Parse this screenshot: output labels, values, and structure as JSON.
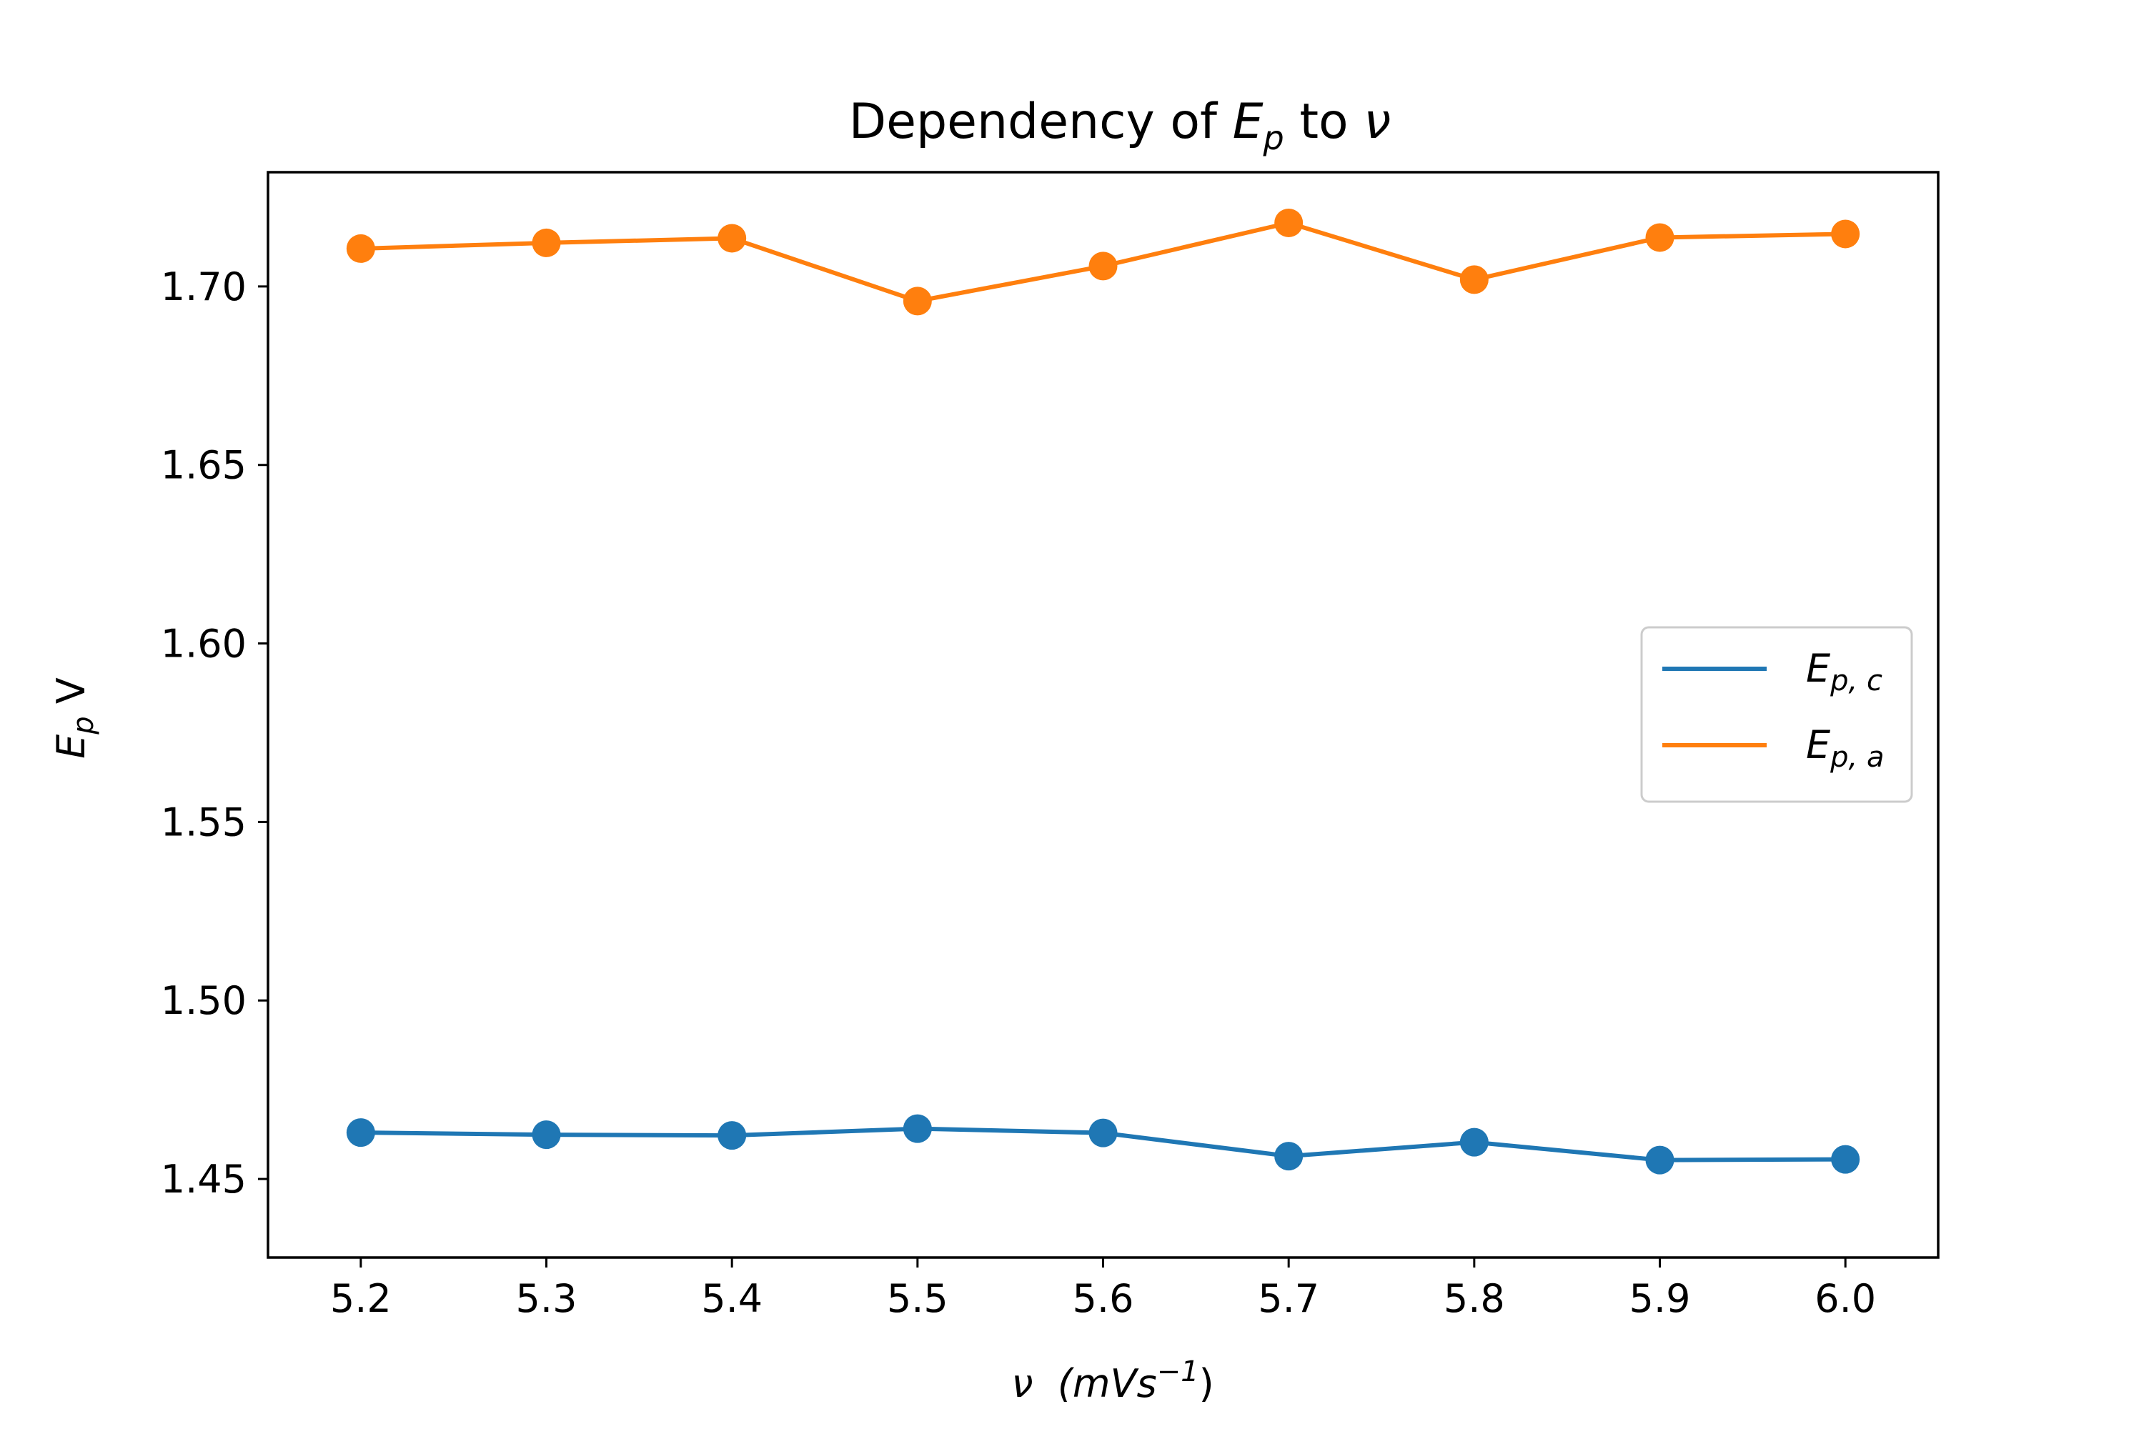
{
  "chart_data": {
    "type": "line",
    "title": "Dependency of E_p to ν",
    "title_parts": {
      "prefix": "Dependency of ",
      "e": "E",
      "e_sub": "p",
      "mid": " to ",
      "nu": "ν"
    },
    "xlabel": "ν  (mVs⁻¹)",
    "xlabel_parts": {
      "nu": "ν",
      "unit": "(mVs",
      "exp": "−1",
      "close": ")"
    },
    "ylabel": "E_p V",
    "ylabel_parts": {
      "e": "E",
      "e_sub": "p",
      "unit": "V"
    },
    "x": [
      5.2,
      5.3,
      5.4,
      5.5,
      5.6,
      5.7,
      5.8,
      5.9,
      6.0
    ],
    "x_tick_labels": [
      "5.2",
      "5.3",
      "5.4",
      "5.5",
      "5.6",
      "5.7",
      "5.8",
      "5.9",
      "6.0"
    ],
    "y_ticks": [
      1.45,
      1.5,
      1.55,
      1.6,
      1.65,
      1.7
    ],
    "y_tick_labels": [
      "1.45",
      "1.50",
      "1.55",
      "1.60",
      "1.65",
      "1.70"
    ],
    "xlim": [
      5.15,
      6.05
    ],
    "ylim": [
      1.428,
      1.732
    ],
    "grid": false,
    "legend_position": "center-right",
    "series": [
      {
        "name": "E_p,c",
        "label_parts": {
          "e": "E",
          "sub": "p, c"
        },
        "color": "#1f77b4",
        "values": [
          1.463,
          1.4624,
          1.4622,
          1.4641,
          1.4629,
          1.4564,
          1.4603,
          1.4553,
          1.4555
        ]
      },
      {
        "name": "E_p,a",
        "label_parts": {
          "e": "E",
          "sub": "p, a"
        },
        "color": "#ff7f0e",
        "values": [
          1.7106,
          1.7122,
          1.7135,
          1.6959,
          1.7057,
          1.7178,
          1.7019,
          1.7137,
          1.7147
        ]
      }
    ]
  }
}
